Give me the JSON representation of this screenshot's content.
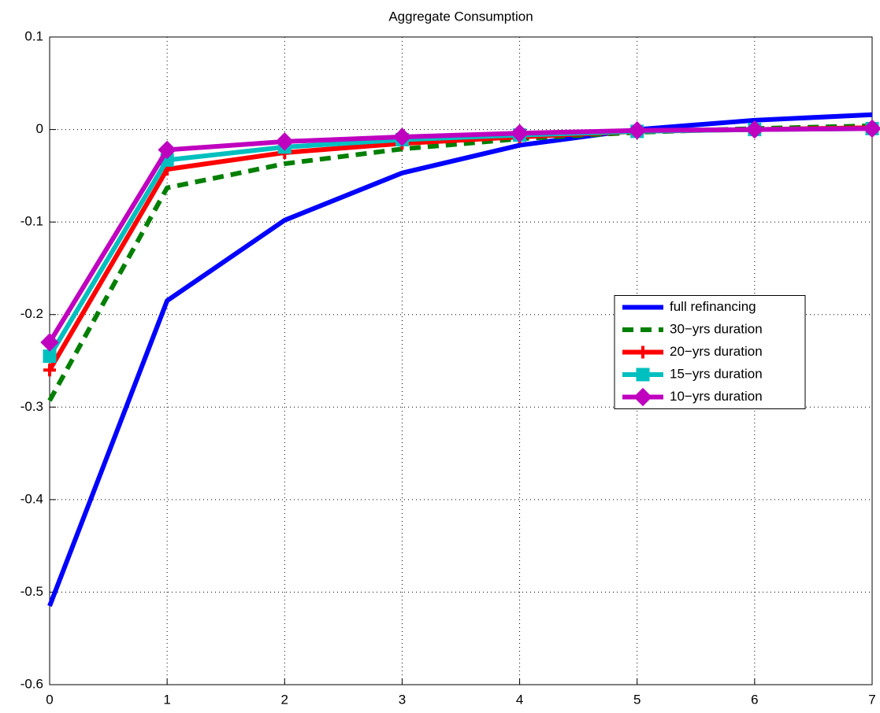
{
  "chart_data": {
    "type": "line",
    "title": "Aggregate Consumption",
    "x": [
      0,
      1,
      2,
      3,
      4,
      5,
      6,
      7
    ],
    "series": [
      {
        "name": "full refinancing",
        "color": "#0000ff",
        "dash": "solid",
        "marker": "none",
        "values": [
          -0.515,
          -0.185,
          -0.098,
          -0.047,
          -0.017,
          0.0,
          0.01,
          0.016
        ]
      },
      {
        "name": "30−yrs duration",
        "color": "#007f00",
        "dash": "dashed",
        "marker": "none",
        "values": [
          -0.293,
          -0.063,
          -0.037,
          -0.021,
          -0.01,
          -0.003,
          0.001,
          0.004
        ]
      },
      {
        "name": "20−yrs duration",
        "color": "#ff0000",
        "dash": "solid",
        "marker": "plus",
        "values": [
          -0.26,
          -0.043,
          -0.025,
          -0.015,
          -0.008,
          -0.002,
          0.0,
          0.002
        ]
      },
      {
        "name": "15−yrs duration",
        "color": "#00bfbf",
        "dash": "solid",
        "marker": "square",
        "values": [
          -0.245,
          -0.033,
          -0.019,
          -0.011,
          -0.006,
          -0.002,
          0.0,
          0.001
        ]
      },
      {
        "name": "10−yrs duration",
        "color": "#bf00bf",
        "dash": "solid",
        "marker": "diamond",
        "values": [
          -0.23,
          -0.022,
          -0.013,
          -0.008,
          -0.004,
          -0.001,
          0.0,
          0.001
        ]
      }
    ],
    "xlim": [
      0,
      7
    ],
    "xticks": [
      0,
      1,
      2,
      3,
      4,
      5,
      6,
      7
    ],
    "ylim": [
      -0.6,
      0.1
    ],
    "yticks": [
      -0.6,
      -0.5,
      -0.4,
      -0.3,
      -0.2,
      -0.1,
      0,
      0.1
    ],
    "grid": true,
    "legend_loc": "right"
  }
}
